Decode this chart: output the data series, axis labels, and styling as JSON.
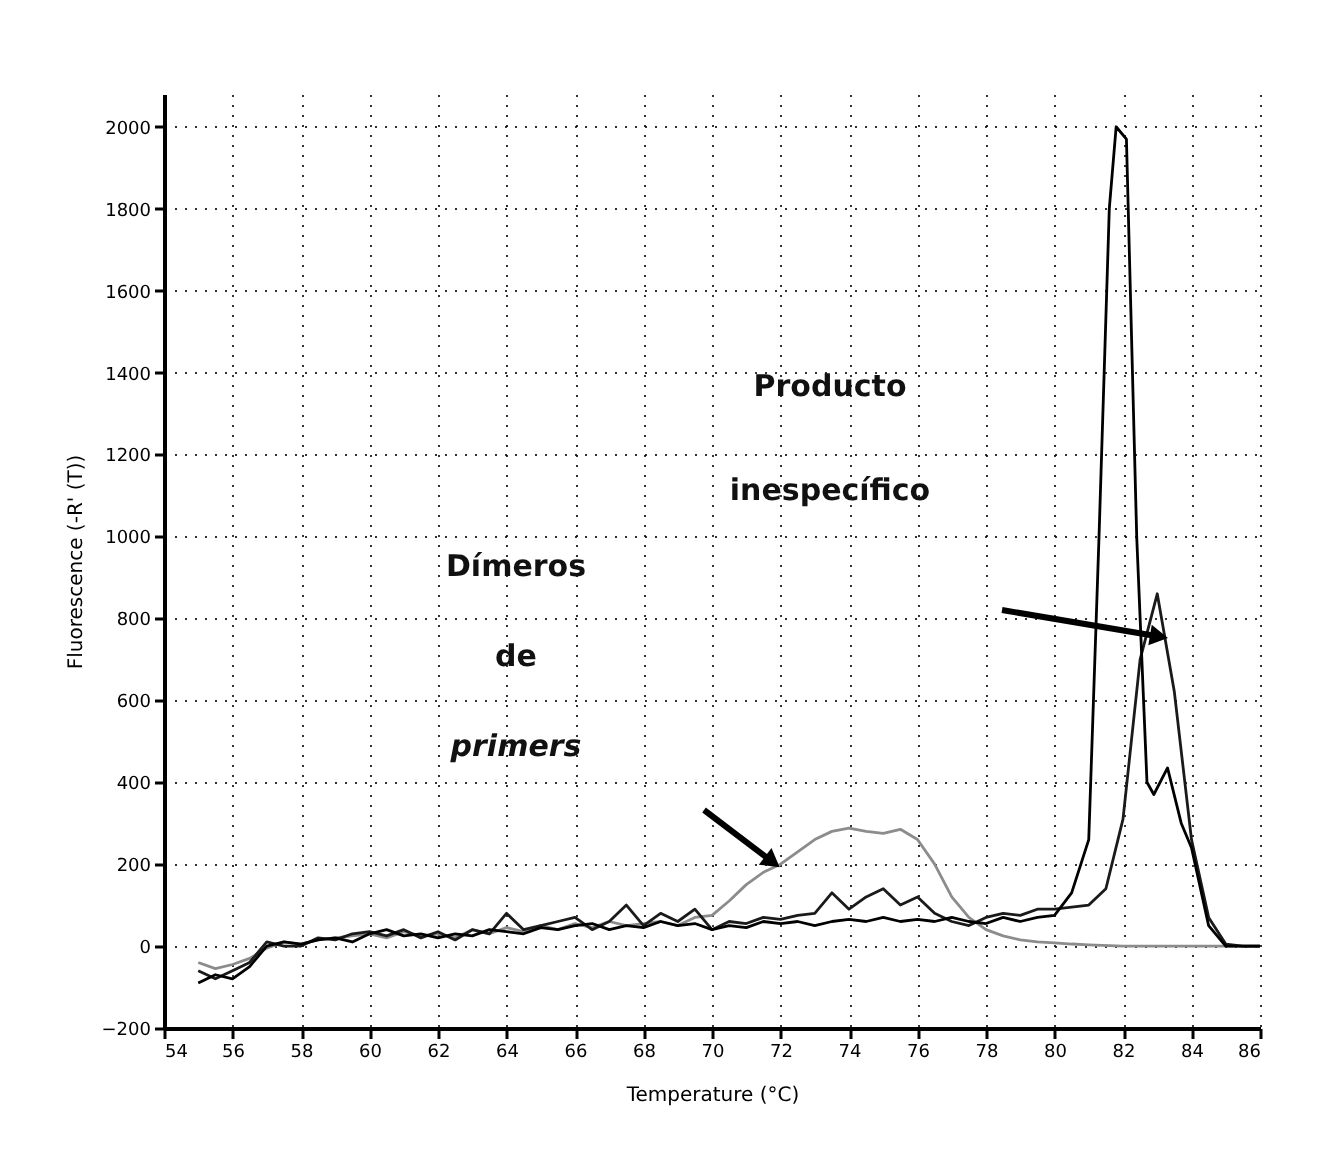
{
  "chart_data": {
    "type": "line",
    "xlabel": "Temperature (°C)",
    "ylabel": "Fluorescence (-R' (T))",
    "xlim": [
      54,
      86
    ],
    "xticks": [
      54,
      56,
      58,
      60,
      62,
      64,
      66,
      68,
      70,
      72,
      74,
      76,
      78,
      80,
      82,
      84,
      86
    ],
    "ylim": [
      -200,
      2080
    ],
    "yticks": [
      -200,
      0,
      200,
      400,
      600,
      800,
      1000,
      1200,
      1400,
      1600,
      1800,
      2000
    ],
    "grid": true,
    "series": [
      {
        "color": "#8c8c8c",
        "x": [
          55,
          55.5,
          56,
          56.5,
          57,
          57.5,
          58,
          58.5,
          59,
          59.5,
          60,
          60.5,
          61,
          61.5,
          62,
          62.5,
          63,
          63.5,
          64,
          64.5,
          65,
          65.5,
          66,
          66.5,
          67,
          67.5,
          68,
          68.5,
          69,
          69.5,
          70,
          70.5,
          71,
          71.5,
          72,
          72.5,
          73,
          73.5,
          74,
          74.5,
          75,
          75.5,
          76,
          76.5,
          77,
          77.5,
          78,
          78.5,
          79,
          79.5,
          80,
          80.5,
          81,
          82,
          83,
          84,
          85,
          86
        ],
        "values": [
          -40,
          -55,
          -45,
          -30,
          -5,
          10,
          5,
          15,
          20,
          25,
          30,
          20,
          35,
          25,
          30,
          20,
          40,
          30,
          45,
          35,
          50,
          40,
          55,
          45,
          60,
          50,
          55,
          60,
          50,
          70,
          75,
          110,
          150,
          180,
          200,
          230,
          260,
          280,
          288,
          280,
          275,
          285,
          260,
          200,
          120,
          70,
          40,
          25,
          15,
          10,
          8,
          5,
          3,
          0,
          0,
          0,
          0,
          0
        ]
      },
      {
        "color": "#1a1a1a",
        "x": [
          55,
          55.5,
          56,
          56.5,
          57,
          57.5,
          58,
          58.5,
          59,
          59.5,
          60,
          60.5,
          61,
          61.5,
          62,
          62.5,
          63,
          63.5,
          64,
          64.5,
          65,
          65.5,
          66,
          66.5,
          67,
          67.5,
          68,
          68.5,
          69,
          69.5,
          70,
          70.5,
          71,
          71.5,
          72,
          72.5,
          73,
          73.5,
          74,
          74.5,
          75,
          75.5,
          76,
          76.5,
          77,
          77.5,
          78,
          78.5,
          79,
          79.5,
          80,
          80.5,
          81,
          81.5,
          82,
          82.5,
          83,
          83.5,
          84,
          84.5,
          85,
          85.5,
          86
        ],
        "values": [
          -60,
          -80,
          -60,
          -40,
          10,
          0,
          0,
          20,
          15,
          30,
          35,
          25,
          40,
          20,
          35,
          15,
          40,
          30,
          80,
          40,
          50,
          60,
          70,
          40,
          60,
          100,
          50,
          80,
          60,
          90,
          40,
          60,
          55,
          70,
          65,
          75,
          80,
          130,
          90,
          120,
          140,
          100,
          120,
          80,
          60,
          50,
          70,
          80,
          75,
          90,
          90,
          95,
          100,
          140,
          310,
          700,
          860,
          620,
          260,
          70,
          5,
          0,
          0
        ]
      },
      {
        "color": "#000000",
        "x": [
          55,
          55.5,
          56,
          56.5,
          57,
          57.5,
          58,
          58.5,
          59,
          59.5,
          60,
          60.5,
          61,
          61.5,
          62,
          62.5,
          63,
          63.5,
          64,
          64.5,
          65,
          65.5,
          66,
          66.5,
          67,
          67.5,
          68,
          68.5,
          69,
          69.5,
          70,
          70.5,
          71,
          71.5,
          72,
          72.5,
          73,
          73.5,
          74,
          74.5,
          75,
          75.5,
          76,
          76.5,
          77,
          77.5,
          78,
          78.5,
          79,
          79.5,
          80,
          80.5,
          81,
          81.3,
          81.6,
          81.8,
          82.1,
          82.4,
          82.7,
          82.9,
          83.3,
          83.7,
          84,
          84.5,
          85,
          85.5,
          86
        ],
        "values": [
          -90,
          -70,
          -80,
          -50,
          0,
          10,
          5,
          15,
          20,
          10,
          30,
          40,
          25,
          30,
          20,
          30,
          25,
          40,
          35,
          30,
          45,
          40,
          50,
          55,
          40,
          50,
          45,
          60,
          50,
          55,
          40,
          50,
          45,
          60,
          55,
          60,
          50,
          60,
          65,
          60,
          70,
          60,
          65,
          60,
          70,
          60,
          55,
          70,
          60,
          70,
          75,
          130,
          260,
          1000,
          1800,
          2000,
          1970,
          1000,
          400,
          370,
          435,
          300,
          240,
          50,
          0,
          0,
          0
        ]
      }
    ],
    "annotations": [
      "Producto",
      "inespecífico",
      "Dímeros",
      "de",
      "primers"
    ]
  }
}
